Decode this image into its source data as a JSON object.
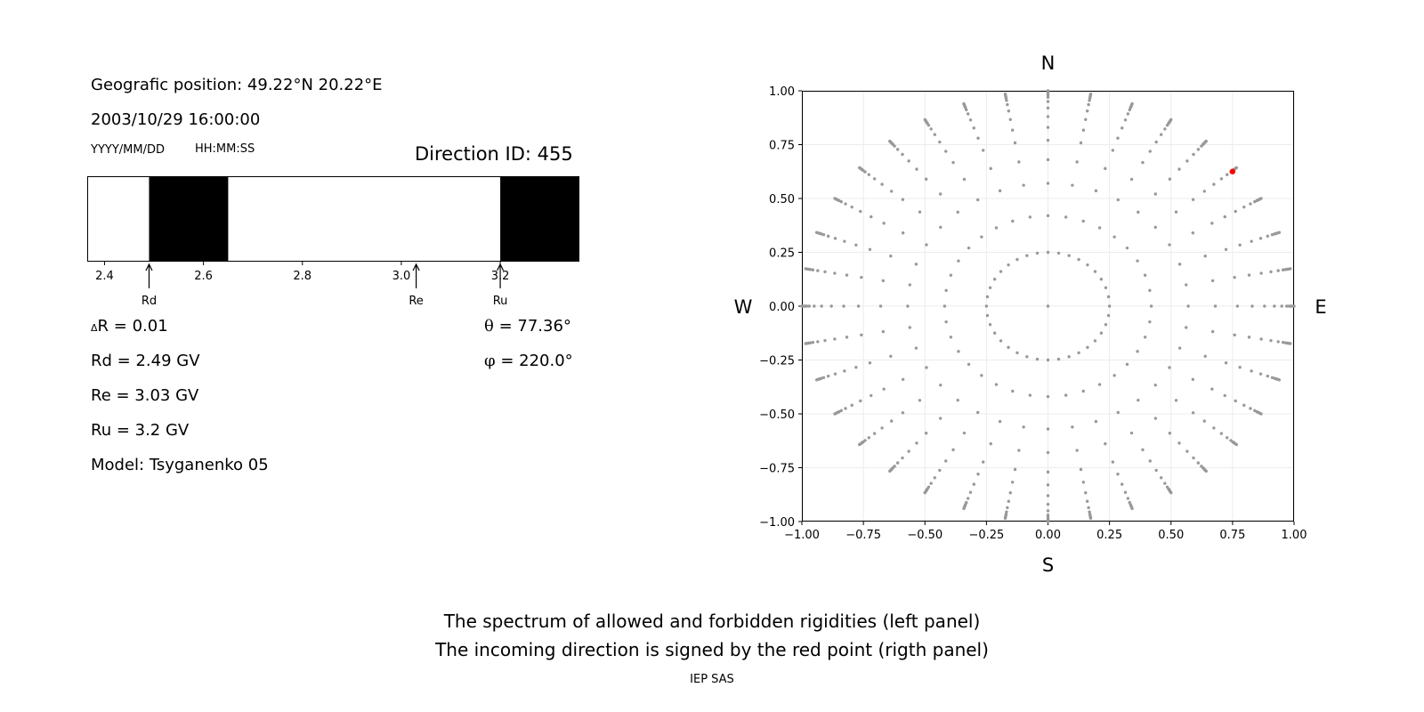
{
  "left_panel": {
    "position": "Geografic position: 49.22°N 20.22°E",
    "datetime": "2003/10/29 16:00:00",
    "date_format": "YYYY/MM/DD",
    "time_format": "HH:MM:SS",
    "direction_id": "Direction ID: 455",
    "delta_r_symbol": "Δ",
    "delta_r": "R = 0.01",
    "rd": "Rd = 2.49 GV",
    "re": "Re = 3.03 GV",
    "ru": "Ru = 3.2 GV",
    "model": "Model: Tsyganenko 05",
    "theta_symbol": "θ",
    "theta": " = 77.36°",
    "phi_symbol": "φ",
    "phi": " = 220.0°"
  },
  "chart_data": [
    {
      "type": "bar",
      "xlim": [
        2.365,
        3.36
      ],
      "ticks": [
        "2.4",
        "2.6",
        "2.8",
        "3.0",
        "3.2"
      ],
      "tick_values": [
        2.4,
        2.6,
        2.8,
        3.0,
        3.2
      ],
      "forbidden_bands": [
        [
          2.49,
          2.65
        ],
        [
          3.2,
          3.36
        ]
      ],
      "markers": [
        {
          "name": "Rd",
          "value": 2.49
        },
        {
          "name": "Re",
          "value": 3.03
        },
        {
          "name": "Ru",
          "value": 3.2
        }
      ],
      "colors": {
        "forbidden": "#000000",
        "allowed": "#ffffff"
      }
    },
    {
      "type": "scatter",
      "xlim": [
        -1.0,
        1.0
      ],
      "ylim": [
        -1.0,
        1.0
      ],
      "grid": true,
      "x_ticks": [
        "−1.00",
        "−0.75",
        "−0.50",
        "−0.25",
        "0.00",
        "0.25",
        "0.50",
        "0.75",
        "1.00"
      ],
      "y_ticks": [
        "1.00",
        "0.75",
        "0.50",
        "0.25",
        "0.00",
        "−0.25",
        "−0.50",
        "−0.75",
        "−1.00"
      ],
      "tick_values_x": [
        -1.0,
        -0.75,
        -0.5,
        -0.25,
        0.0,
        0.25,
        0.5,
        0.75,
        1.0
      ],
      "tick_values_y": [
        1.0,
        0.75,
        0.5,
        0.25,
        0.0,
        -0.25,
        -0.5,
        -0.75,
        -1.0
      ],
      "compass": {
        "n": "N",
        "s": "S",
        "e": "E",
        "w": "W"
      },
      "grid_points": {
        "azimuth_step_deg": 10,
        "rings": [
          0.25,
          0.42,
          0.57,
          0.68,
          0.77,
          0.83,
          0.88,
          0.92,
          0.95,
          0.97,
          0.98,
          0.985,
          0.99,
          0.995,
          1.0
        ],
        "color": "#999999"
      },
      "highlight_point": {
        "x": 0.75,
        "y": 0.625,
        "color": "#ff0000"
      }
    }
  ],
  "caption": {
    "line1": "The spectrum of allowed and forbidden rigidities (left panel)",
    "line2": "The incoming direction is signed by the red point (rigth panel)",
    "credit": "IEP SAS"
  }
}
